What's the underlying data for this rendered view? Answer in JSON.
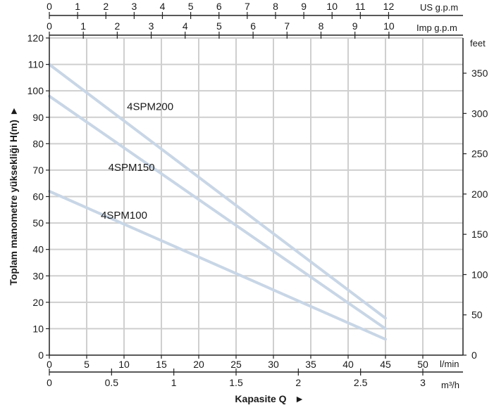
{
  "chart_data": {
    "type": "line",
    "title": "",
    "xlabel": "Kapasite Q",
    "x_arrow": "►",
    "ylabel": "Toplam manometre yüksekliği  H(m)",
    "y_arrow": "►",
    "xlim": [
      0,
      55
    ],
    "ylim": [
      0,
      120
    ],
    "grid": true,
    "x_lmin": {
      "unit": "l/min",
      "ticks": [
        0,
        5,
        10,
        15,
        20,
        25,
        30,
        35,
        40,
        45,
        50
      ]
    },
    "x_m3h": {
      "unit": "m³/h",
      "ticks": [
        0,
        0.5,
        1,
        1.5,
        2,
        2.5,
        3
      ],
      "tick_labels": [
        "0",
        "0.5",
        "1",
        "1.5",
        "2",
        "2.5",
        "3"
      ]
    },
    "x_usgpm": {
      "unit": "US g.p.m",
      "ticks": [
        0,
        1,
        2,
        3,
        4,
        5,
        6,
        7,
        8,
        9,
        10,
        11,
        12
      ]
    },
    "x_impgpm": {
      "unit": "Imp g.p.m",
      "ticks": [
        0,
        1,
        2,
        3,
        4,
        5,
        6,
        7,
        8,
        9,
        10
      ]
    },
    "y_m": {
      "ticks": [
        0,
        10,
        20,
        30,
        40,
        50,
        60,
        70,
        80,
        90,
        100,
        110,
        120
      ]
    },
    "y_feet": {
      "unit": "feet",
      "ticks": [
        0,
        50,
        100,
        150,
        200,
        250,
        300,
        350
      ]
    },
    "series": [
      {
        "name": "4SPM200",
        "x": [
          0,
          45
        ],
        "y": [
          110,
          14
        ]
      },
      {
        "name": "4SPM150",
        "x": [
          0,
          45
        ],
        "y": [
          98,
          10
        ]
      },
      {
        "name": "4SPM100",
        "x": [
          0,
          45
        ],
        "y": [
          62,
          6
        ]
      }
    ],
    "series_color": "#c8d6e6"
  }
}
